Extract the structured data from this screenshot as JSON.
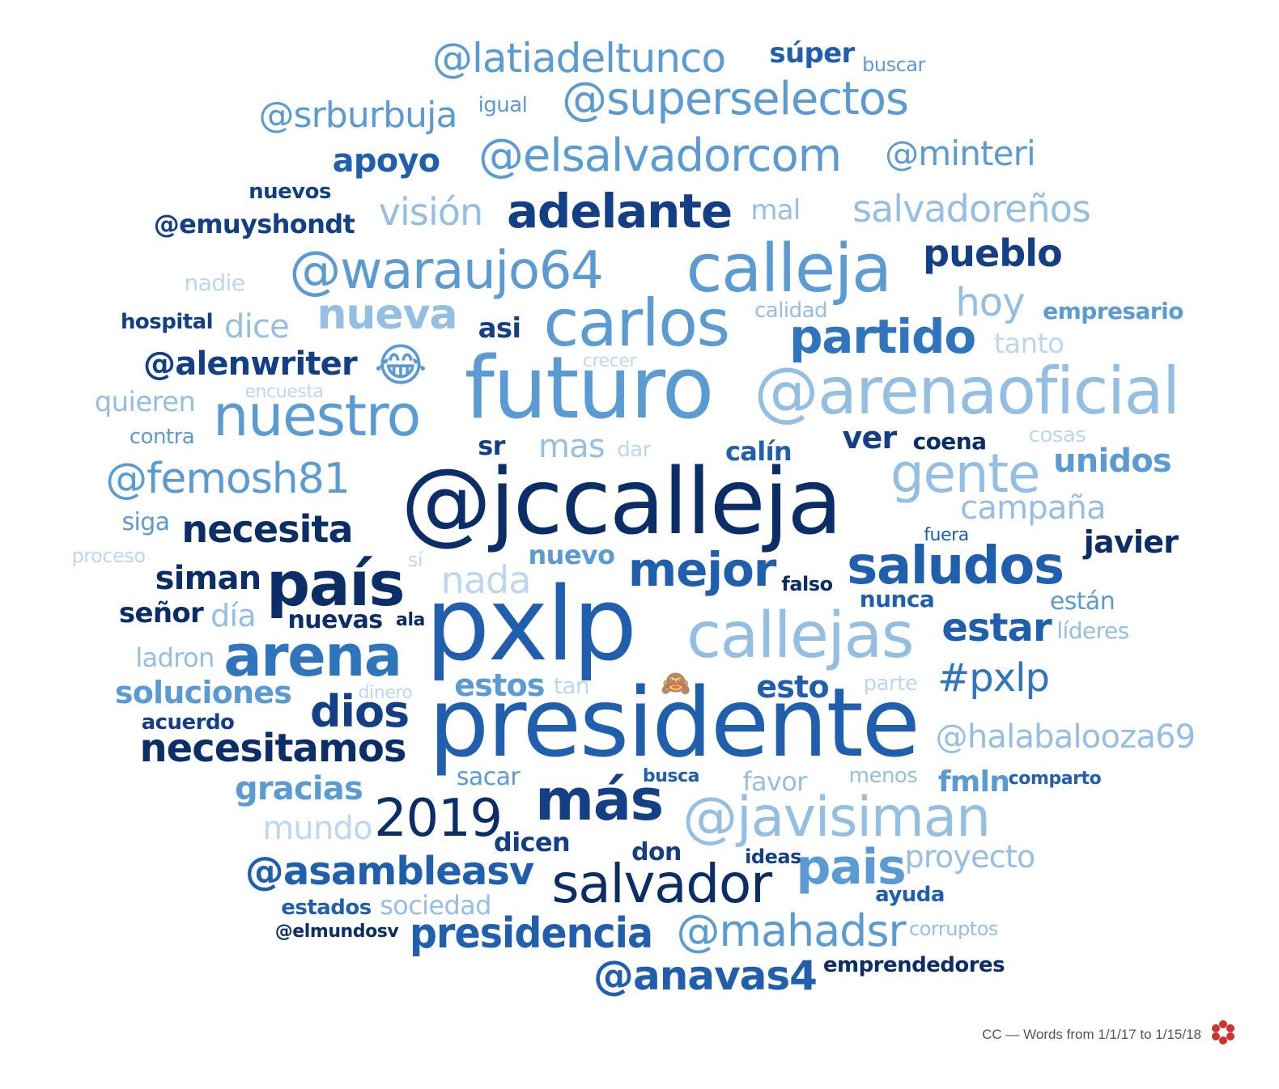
{
  "footer": {
    "caption": "CC — Words from 1/1/17 to 1/15/18",
    "logo_icon": "red-flower-logo-icon"
  },
  "palette": {
    "navy": "#0b2d68",
    "dark": "#133f86",
    "mid": "#1f5fae",
    "blue": "#2f75bd",
    "light": "#5b9bd3",
    "pale": "#94bfe3",
    "faint": "#bcd7ef"
  },
  "emojis": [
    {
      "name": "laughing-face-emoji-icon"
    },
    {
      "name": "see-no-evil-monkey-emoji-icon"
    }
  ],
  "words": [
    {
      "text": "@latiadeltunco",
      "color": "light"
    },
    {
      "text": "súper",
      "color": "mid"
    },
    {
      "text": "buscar",
      "color": "light"
    },
    {
      "text": "@superselectos",
      "color": "light"
    },
    {
      "text": "@srburbuja",
      "color": "light"
    },
    {
      "text": "igual",
      "color": "light"
    },
    {
      "text": "apoyo",
      "color": "mid"
    },
    {
      "text": "@elsalvadorcom",
      "color": "light"
    },
    {
      "text": "@minteri",
      "color": "light"
    },
    {
      "text": "nuevos",
      "color": "dark"
    },
    {
      "text": "visión",
      "color": "pale"
    },
    {
      "text": "adelante",
      "color": "dark"
    },
    {
      "text": "mal",
      "color": "pale"
    },
    {
      "text": "salvadoreños",
      "color": "pale"
    },
    {
      "text": "@emuyshondt",
      "color": "dark"
    },
    {
      "text": "@waraujo64",
      "color": "light"
    },
    {
      "text": "calleja",
      "color": "light"
    },
    {
      "text": "pueblo",
      "color": "dark"
    },
    {
      "text": "nadie",
      "color": "faint"
    },
    {
      "text": "nueva",
      "color": "pale"
    },
    {
      "text": "carlos",
      "color": "light"
    },
    {
      "text": "hoy",
      "color": "pale"
    },
    {
      "text": "hospital",
      "color": "dark"
    },
    {
      "text": "dice",
      "color": "pale"
    },
    {
      "text": "asi",
      "color": "dark"
    },
    {
      "text": "calidad",
      "color": "pale"
    },
    {
      "text": "partido",
      "color": "blue"
    },
    {
      "text": "empresario",
      "color": "light"
    },
    {
      "text": "tanto",
      "color": "faint"
    },
    {
      "text": "@alenwriter",
      "color": "dark"
    },
    {
      "text": "crecer",
      "color": "faint"
    },
    {
      "text": "futuro",
      "color": "light"
    },
    {
      "text": "@arenaoficial",
      "color": "pale"
    },
    {
      "text": "quieren",
      "color": "pale"
    },
    {
      "text": "encuesta",
      "color": "faint"
    },
    {
      "text": "nuestro",
      "color": "light"
    },
    {
      "text": "contra",
      "color": "light"
    },
    {
      "text": "mas",
      "color": "pale"
    },
    {
      "text": "dar",
      "color": "faint"
    },
    {
      "text": "calín",
      "color": "mid"
    },
    {
      "text": "ver",
      "color": "dark"
    },
    {
      "text": "coena",
      "color": "navy"
    },
    {
      "text": "cosas",
      "color": "faint"
    },
    {
      "text": "sr",
      "color": "dark"
    },
    {
      "text": "gente",
      "color": "pale"
    },
    {
      "text": "unidos",
      "color": "light"
    },
    {
      "text": "@femosh81",
      "color": "light"
    },
    {
      "text": "@jccalleja",
      "color": "navy"
    },
    {
      "text": "campaña",
      "color": "pale"
    },
    {
      "text": "siga",
      "color": "light"
    },
    {
      "text": "necesita",
      "color": "navy"
    },
    {
      "text": "javier",
      "color": "navy"
    },
    {
      "text": "proceso",
      "color": "faint"
    },
    {
      "text": "sí",
      "color": "faint"
    },
    {
      "text": "nuevo",
      "color": "light"
    },
    {
      "text": "fuera",
      "color": "mid"
    },
    {
      "text": "saludos",
      "color": "mid"
    },
    {
      "text": "siman",
      "color": "navy"
    },
    {
      "text": "país",
      "color": "navy"
    },
    {
      "text": "nada",
      "color": "faint"
    },
    {
      "text": "mejor",
      "color": "mid"
    },
    {
      "text": "falso",
      "color": "navy"
    },
    {
      "text": "nunca",
      "color": "mid"
    },
    {
      "text": "están",
      "color": "light"
    },
    {
      "text": "señor",
      "color": "navy"
    },
    {
      "text": "día",
      "color": "pale"
    },
    {
      "text": "nuevas",
      "color": "navy"
    },
    {
      "text": "ala",
      "color": "navy"
    },
    {
      "text": "pxlp",
      "color": "mid"
    },
    {
      "text": "callejas",
      "color": "pale"
    },
    {
      "text": "estar",
      "color": "mid"
    },
    {
      "text": "líderes",
      "color": "pale"
    },
    {
      "text": "ladron",
      "color": "pale"
    },
    {
      "text": "arena",
      "color": "blue"
    },
    {
      "text": "#pxlp",
      "color": "blue"
    },
    {
      "text": "soluciones",
      "color": "light"
    },
    {
      "text": "estos",
      "color": "light"
    },
    {
      "text": "tan",
      "color": "faint"
    },
    {
      "text": "esto",
      "color": "mid"
    },
    {
      "text": "parte",
      "color": "faint"
    },
    {
      "text": "dinero",
      "color": "faint"
    },
    {
      "text": "dios",
      "color": "dark"
    },
    {
      "text": "acuerdo",
      "color": "dark"
    },
    {
      "text": "presidente",
      "color": "mid"
    },
    {
      "text": "@halabalooza69",
      "color": "pale"
    },
    {
      "text": "necesitamos",
      "color": "navy"
    },
    {
      "text": "gracias",
      "color": "light"
    },
    {
      "text": "sacar",
      "color": "light"
    },
    {
      "text": "busca",
      "color": "mid"
    },
    {
      "text": "favor",
      "color": "pale"
    },
    {
      "text": "menos",
      "color": "pale"
    },
    {
      "text": "fmln",
      "color": "light"
    },
    {
      "text": "comparto",
      "color": "mid"
    },
    {
      "text": "2019",
      "color": "navy"
    },
    {
      "text": "más",
      "color": "dark"
    },
    {
      "text": "@javisiman",
      "color": "pale"
    },
    {
      "text": "mundo",
      "color": "faint"
    },
    {
      "text": "dicen",
      "color": "dark"
    },
    {
      "text": "@asambleasv",
      "color": "mid"
    },
    {
      "text": "don",
      "color": "dark"
    },
    {
      "text": "ideas",
      "color": "dark"
    },
    {
      "text": "pais",
      "color": "light"
    },
    {
      "text": "proyecto",
      "color": "pale"
    },
    {
      "text": "salvador",
      "color": "navy"
    },
    {
      "text": "estados",
      "color": "mid"
    },
    {
      "text": "sociedad",
      "color": "pale"
    },
    {
      "text": "ayuda",
      "color": "mid"
    },
    {
      "text": "presidencia",
      "color": "mid"
    },
    {
      "text": "@mahadsr",
      "color": "light"
    },
    {
      "text": "@elmundosv",
      "color": "navy"
    },
    {
      "text": "corruptos",
      "color": "pale"
    },
    {
      "text": "emprendedores",
      "color": "navy"
    },
    {
      "text": "@anavas4",
      "color": "mid"
    }
  ]
}
